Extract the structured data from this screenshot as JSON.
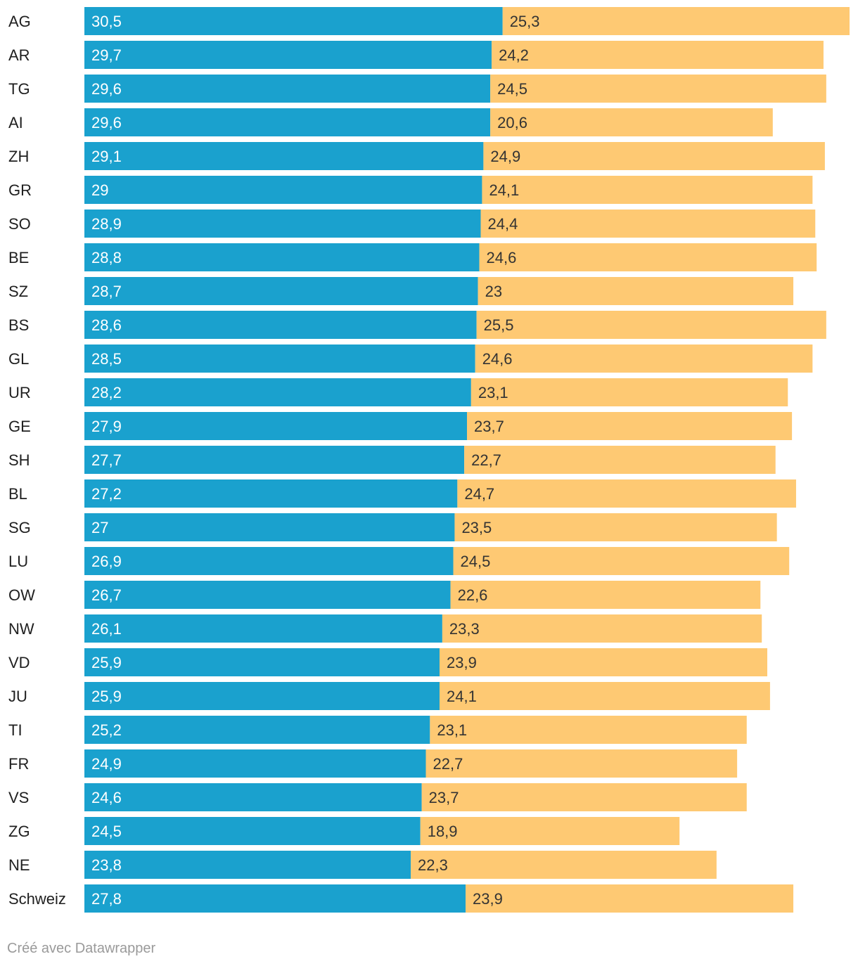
{
  "chart_data": {
    "type": "bar",
    "orientation": "horizontal",
    "stacked": true,
    "categories": [
      "AG",
      "AR",
      "TG",
      "AI",
      "ZH",
      "GR",
      "SO",
      "BE",
      "SZ",
      "BS",
      "GL",
      "UR",
      "GE",
      "SH",
      "BL",
      "SG",
      "LU",
      "OW",
      "NW",
      "VD",
      "JU",
      "TI",
      "FR",
      "VS",
      "ZG",
      "NE",
      "Schweiz"
    ],
    "series": [
      {
        "name": "series-1",
        "color": "#1aa1ce",
        "values": [
          30.5,
          29.7,
          29.6,
          29.6,
          29.1,
          29,
          28.9,
          28.8,
          28.7,
          28.6,
          28.5,
          28.2,
          27.9,
          27.7,
          27.2,
          27,
          26.9,
          26.7,
          26.1,
          25.9,
          25.9,
          25.2,
          24.9,
          24.6,
          24.5,
          23.8,
          27.8
        ],
        "labels": [
          "30,5",
          "29,7",
          "29,6",
          "29,6",
          "29,1",
          "29",
          "28,9",
          "28,8",
          "28,7",
          "28,6",
          "28,5",
          "28,2",
          "27,9",
          "27,7",
          "27,2",
          "27",
          "26,9",
          "26,7",
          "26,1",
          "25,9",
          "25,9",
          "25,2",
          "24,9",
          "24,6",
          "24,5",
          "23,8",
          "27,8"
        ]
      },
      {
        "name": "series-2",
        "color": "#fec973",
        "values": [
          25.3,
          24.2,
          24.5,
          20.6,
          24.9,
          24.1,
          24.4,
          24.6,
          23,
          25.5,
          24.6,
          23.1,
          23.7,
          22.7,
          24.7,
          23.5,
          24.5,
          22.6,
          23.3,
          23.9,
          24.1,
          23.1,
          22.7,
          23.7,
          18.9,
          22.3,
          23.9
        ],
        "labels": [
          "25,3",
          "24,2",
          "24,5",
          "20,6",
          "24,9",
          "24,1",
          "24,4",
          "24,6",
          "23",
          "25,5",
          "24,6",
          "23,1",
          "23,7",
          "22,7",
          "24,7",
          "23,5",
          "24,5",
          "22,6",
          "23,3",
          "23,9",
          "24,1",
          "23,1",
          "22,7",
          "23,7",
          "18,9",
          "22,3",
          "23,9"
        ]
      }
    ],
    "xlim": [
      0,
      55.8
    ],
    "title": "",
    "xlabel": "",
    "ylabel": "",
    "grid": false,
    "legend": "none"
  },
  "footer": {
    "credit": "Créé avec Datawrapper"
  }
}
